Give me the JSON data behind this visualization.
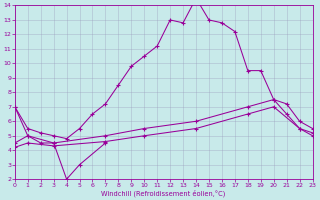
{
  "xlabel": "Windchill (Refroidissement éolien,°C)",
  "background_color": "#c8eaea",
  "line_color": "#990099",
  "grid_color": "#9999bb",
  "xlim": [
    0,
    23
  ],
  "ylim": [
    2,
    14
  ],
  "xticks": [
    0,
    1,
    2,
    3,
    4,
    5,
    6,
    7,
    8,
    9,
    10,
    11,
    12,
    13,
    14,
    15,
    16,
    17,
    18,
    19,
    20,
    21,
    22,
    23
  ],
  "yticks": [
    2,
    3,
    4,
    5,
    6,
    7,
    8,
    9,
    10,
    11,
    12,
    13,
    14
  ],
  "line1_x": [
    0,
    1,
    2,
    3,
    4,
    5,
    7
  ],
  "line1_y": [
    7,
    5,
    4.5,
    4.5,
    2,
    3,
    4.5
  ],
  "line2_x": [
    0,
    1,
    2,
    3,
    4,
    5,
    6,
    7,
    8,
    9,
    10,
    11,
    12,
    13,
    14,
    15,
    16,
    17,
    18,
    19,
    20,
    21,
    22,
    23
  ],
  "line2_y": [
    7,
    5.5,
    5.2,
    5.0,
    4.8,
    5.5,
    6.5,
    7.2,
    8.5,
    9.8,
    10.5,
    11.2,
    13.0,
    12.8,
    14.5,
    13.0,
    12.8,
    12.2,
    9.5,
    9.5,
    7.5,
    6.5,
    5.5,
    5.0
  ],
  "line3_x": [
    0,
    1,
    3,
    7,
    10,
    14,
    18,
    20,
    21,
    22,
    23
  ],
  "line3_y": [
    4.5,
    5.0,
    4.5,
    5.0,
    5.5,
    6.0,
    7.0,
    7.5,
    7.2,
    6.0,
    5.5
  ],
  "line4_x": [
    0,
    1,
    3,
    7,
    10,
    14,
    18,
    20,
    22,
    23
  ],
  "line4_y": [
    4.2,
    4.5,
    4.3,
    4.6,
    5.0,
    5.5,
    6.5,
    7.0,
    5.5,
    5.2
  ]
}
